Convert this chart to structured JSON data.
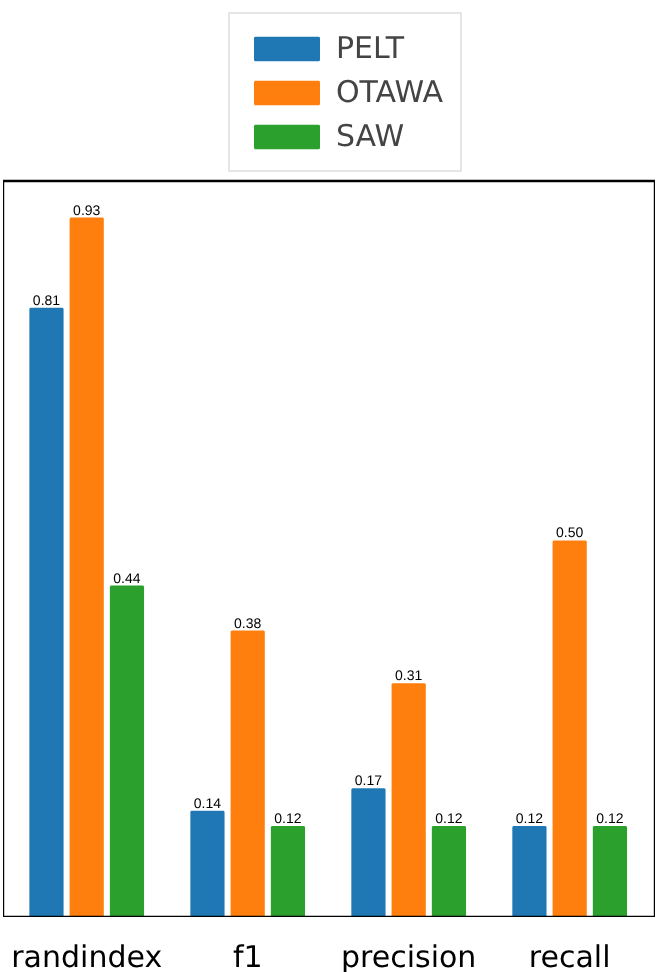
{
  "chart_data": {
    "type": "bar",
    "categories": [
      "randindex",
      "f1",
      "precision",
      "recall"
    ],
    "ylim": [
      0,
      0.98
    ],
    "tick_labels": "x",
    "series": [
      {
        "name": "PELT",
        "color": "#1f77b4",
        "values": [
          0.81,
          0.14,
          0.17,
          0.12
        ],
        "value_labels": [
          "0.81",
          "0.14",
          "0.17",
          "0.12"
        ]
      },
      {
        "name": "OTAWA",
        "color": "#ff7f0e",
        "values": [
          0.93,
          0.38,
          0.31,
          0.5
        ],
        "value_labels": [
          "0.93",
          "0.38",
          "0.31",
          "0.50"
        ]
      },
      {
        "name": "SAW",
        "color": "#2ca02c",
        "values": [
          0.44,
          0.12,
          0.12,
          0.12
        ],
        "value_labels": [
          "0.44",
          "0.12",
          "0.12",
          "0.12"
        ]
      }
    ],
    "legend": "top"
  }
}
